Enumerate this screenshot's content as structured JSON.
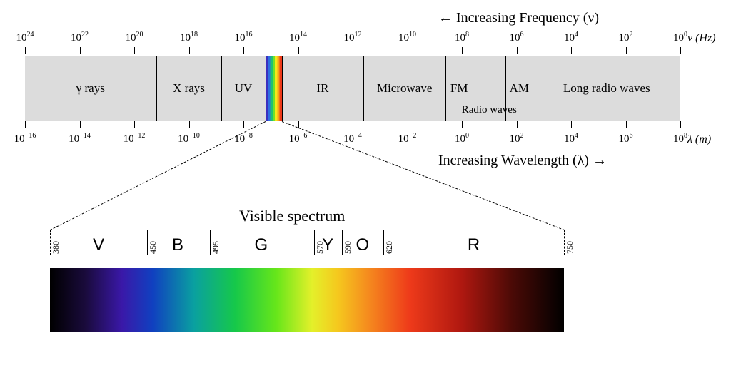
{
  "labels": {
    "freqIncreasing": " Increasing Frequency (ν)",
    "waveIncreasing": "Increasing Wavelength (λ) ",
    "leftArrow": "←",
    "rightArrow": "→",
    "freqUnit": "ν (Hz)",
    "waveUnit": "λ (m)",
    "visibleTitle": "Visible spectrum",
    "radioWaves": "Radio waves"
  },
  "layout": {
    "axisLeft": 35,
    "axisRight": 953,
    "bandTop": 78,
    "bandHeight": 92,
    "freqTickY": 66,
    "freqLabelY": 43,
    "waveTickY": 170,
    "waveLabelY": 185,
    "visibleLeft": 70,
    "visibleRight": 790,
    "vsScaleTop": 322,
    "vsTickHeight": 36,
    "vsColorLabelY": 330,
    "gradientTop": 376,
    "gradientHeight": 90,
    "vsNmMin": 380,
    "vsNmMax": 750
  },
  "freqAxis": {
    "exponents": [
      24,
      22,
      20,
      18,
      16,
      14,
      12,
      10,
      8,
      6,
      4,
      2,
      0
    ],
    "base": "10"
  },
  "waveAxis": {
    "exponents": [
      -16,
      -14,
      -12,
      -10,
      -8,
      -6,
      -4,
      -2,
      0,
      2,
      4,
      6,
      8
    ],
    "base": "10"
  },
  "bands": [
    {
      "label": "γ rays",
      "fromExp": 24,
      "toExp": 19.2
    },
    {
      "label": "X rays",
      "fromExp": 19.2,
      "toExp": 16.8
    },
    {
      "label": "UV",
      "fromExp": 16.8,
      "toExp": 15.2
    },
    {
      "label": "__VISIBLE__",
      "fromExp": 15.2,
      "toExp": 14.6
    },
    {
      "label": "IR",
      "fromExp": 14.6,
      "toExp": 11.6
    },
    {
      "label": "Microwave",
      "fromExp": 11.6,
      "toExp": 8.6
    },
    {
      "label": "FM",
      "fromExp": 8.6,
      "toExp": 7.6
    },
    {
      "label": "",
      "fromExp": 7.6,
      "toExp": 6.4
    },
    {
      "label": "AM",
      "fromExp": 6.4,
      "toExp": 5.4
    },
    {
      "label": "Long radio waves",
      "fromExp": 5.4,
      "toExp": 0
    }
  ],
  "radioSubLabel": {
    "fromExp": 8.6,
    "toExp": 5.4,
    "yOffset": 22
  },
  "visibleStripeColors": [
    "#3b2fbf",
    "#2d6fe0",
    "#1fc172",
    "#6fe22a",
    "#f7e61a",
    "#f7a21a",
    "#ee3a1a"
  ],
  "visibleTicks": [
    {
      "nm": 380,
      "dashed": true
    },
    {
      "nm": 450,
      "dashed": false
    },
    {
      "nm": 495,
      "dashed": false
    },
    {
      "nm": 570,
      "dashed": false
    },
    {
      "nm": 590,
      "dashed": false
    },
    {
      "nm": 620,
      "dashed": false
    },
    {
      "nm": 750,
      "dashed": true
    }
  ],
  "visibleColors": [
    {
      "label": "V",
      "centerNm": 415
    },
    {
      "label": "B",
      "centerNm": 472
    },
    {
      "label": "G",
      "centerNm": 532
    },
    {
      "label": "Y",
      "centerNm": 580
    },
    {
      "label": "O",
      "centerNm": 605
    },
    {
      "label": "R",
      "centerNm": 685
    }
  ],
  "gradientStops": [
    {
      "pct": 0,
      "color": "#000000"
    },
    {
      "pct": 7,
      "color": "#1a0b3d"
    },
    {
      "pct": 14,
      "color": "#3a18a8"
    },
    {
      "pct": 20,
      "color": "#1040c0"
    },
    {
      "pct": 28,
      "color": "#0aa0a0"
    },
    {
      "pct": 36,
      "color": "#16c84a"
    },
    {
      "pct": 44,
      "color": "#66e61a"
    },
    {
      "pct": 51,
      "color": "#e4f02a"
    },
    {
      "pct": 56,
      "color": "#f5c81e"
    },
    {
      "pct": 62,
      "color": "#f58a1e"
    },
    {
      "pct": 70,
      "color": "#ee3a1a"
    },
    {
      "pct": 80,
      "color": "#b01810"
    },
    {
      "pct": 90,
      "color": "#4a0a06"
    },
    {
      "pct": 100,
      "color": "#000000"
    }
  ],
  "colors": {
    "bandBg": "#dcdcdc",
    "line": "#000000",
    "bg": "#ffffff"
  }
}
